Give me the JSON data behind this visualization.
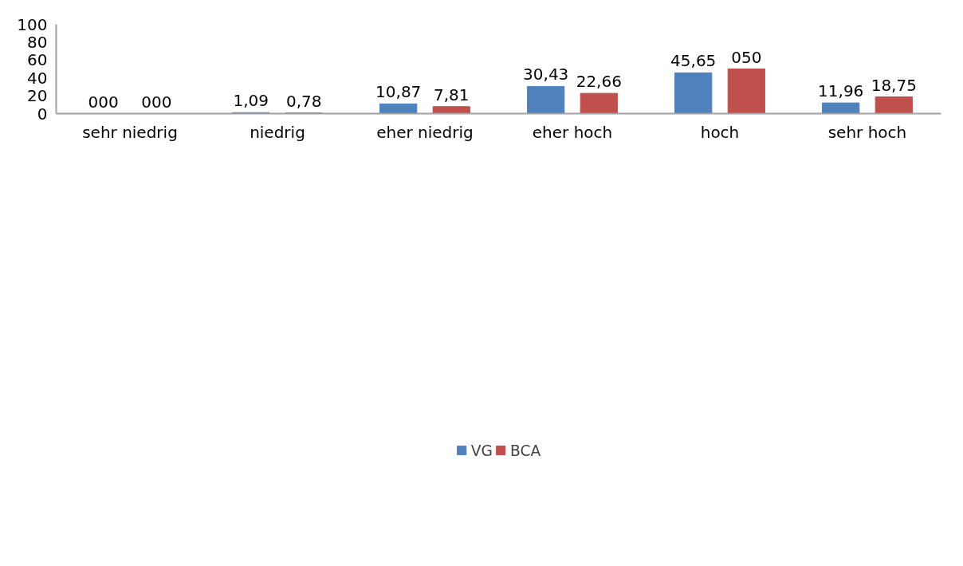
{
  "chart_data": {
    "type": "bar",
    "categories": [
      "sehr niedrig",
      "niedrig",
      "eher niedrig",
      "eher hoch",
      "hoch",
      "sehr hoch"
    ],
    "series": [
      {
        "name": "VG",
        "color": "#4f81bd",
        "values": [
          0,
          1.09,
          10.87,
          30.43,
          45.65,
          11.96
        ],
        "value_labels": [
          "000",
          "1,09",
          "10,87",
          "30,43",
          "45,65",
          "11,96"
        ]
      },
      {
        "name": "BCA",
        "color": "#c0504d",
        "values": [
          0,
          0.78,
          7.81,
          22.66,
          50,
          18.75
        ],
        "value_labels": [
          "000",
          "0,78",
          "7,81",
          "22,66",
          "050",
          "18,75"
        ]
      }
    ],
    "ylim": [
      0,
      100
    ],
    "yticks": [
      0,
      20,
      40,
      60,
      80,
      100
    ],
    "grid": false,
    "legend": "bottom"
  }
}
